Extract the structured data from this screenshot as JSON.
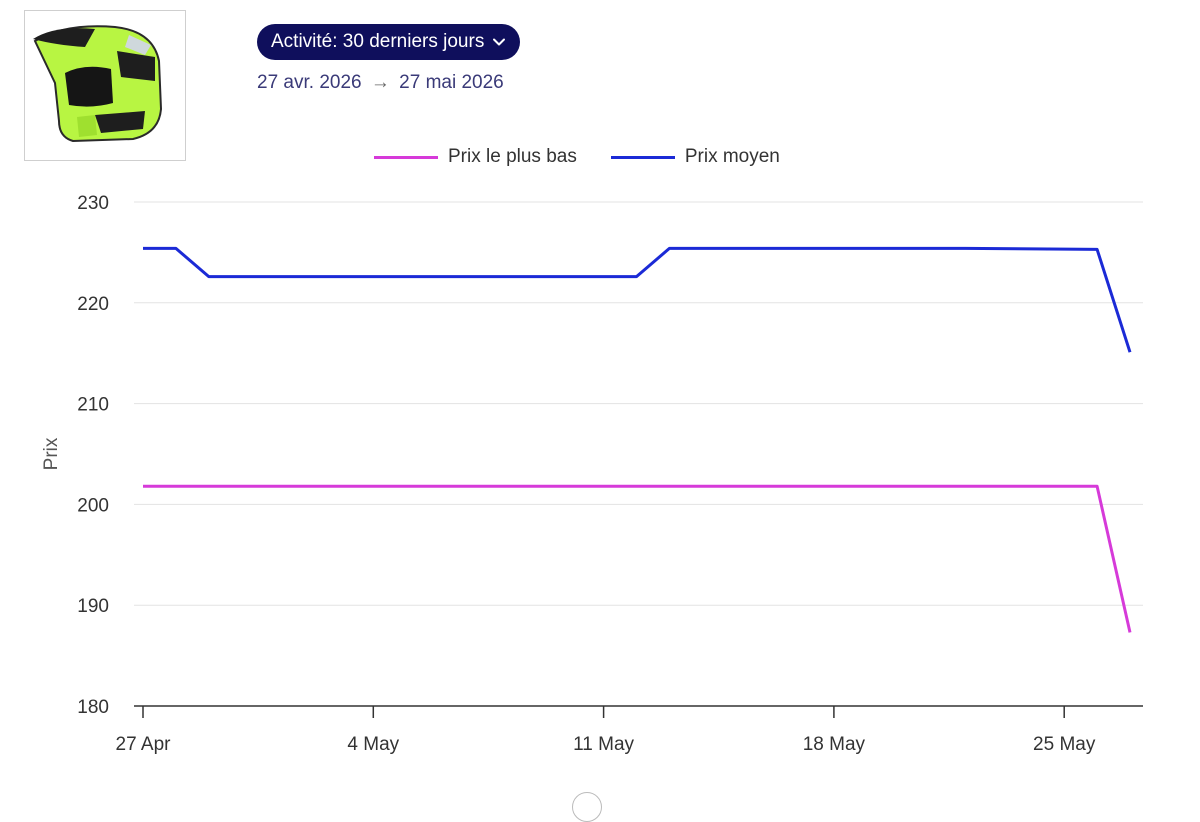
{
  "header": {
    "activity_label": "Activité: 30 derniers jours",
    "date_start": "27 avr. 2026",
    "date_arrow": "→",
    "date_end": "27 mai 2026"
  },
  "product": {
    "image_icon": "motocross-helmet-icon",
    "helmet_color": "#b8f542"
  },
  "chart_data": {
    "type": "line",
    "ylabel": "Prix",
    "xlabel": "",
    "title": "",
    "ylim": [
      180,
      230
    ],
    "yticks": [
      180,
      190,
      200,
      210,
      220,
      230
    ],
    "xlim": [
      "2026-04-27",
      "2026-05-28"
    ],
    "xticks": [
      {
        "date": "2026-04-27",
        "label": "27 Apr"
      },
      {
        "date": "2026-05-04",
        "label": "4 May"
      },
      {
        "date": "2026-05-11",
        "label": "11 May"
      },
      {
        "date": "2026-05-18",
        "label": "18 May"
      },
      {
        "date": "2026-05-25",
        "label": "25 May"
      }
    ],
    "grid": true,
    "legend_position": "top",
    "series": [
      {
        "name": "Prix le plus bas",
        "color": "#d63ad9",
        "points": [
          {
            "x": "2026-04-27",
            "y": 201.8
          },
          {
            "x": "2026-05-26",
            "y": 201.8
          },
          {
            "x": "2026-05-27",
            "y": 187.3
          }
        ]
      },
      {
        "name": "Prix moyen",
        "color": "#1b2ad6",
        "points": [
          {
            "x": "2026-04-27",
            "y": 225.4
          },
          {
            "x": "2026-04-28",
            "y": 225.4
          },
          {
            "x": "2026-04-29",
            "y": 222.6
          },
          {
            "x": "2026-05-12",
            "y": 222.6
          },
          {
            "x": "2026-05-13",
            "y": 225.4
          },
          {
            "x": "2026-05-22",
            "y": 225.4
          },
          {
            "x": "2026-05-26",
            "y": 225.3
          },
          {
            "x": "2026-05-27",
            "y": 215.1
          }
        ]
      }
    ]
  }
}
